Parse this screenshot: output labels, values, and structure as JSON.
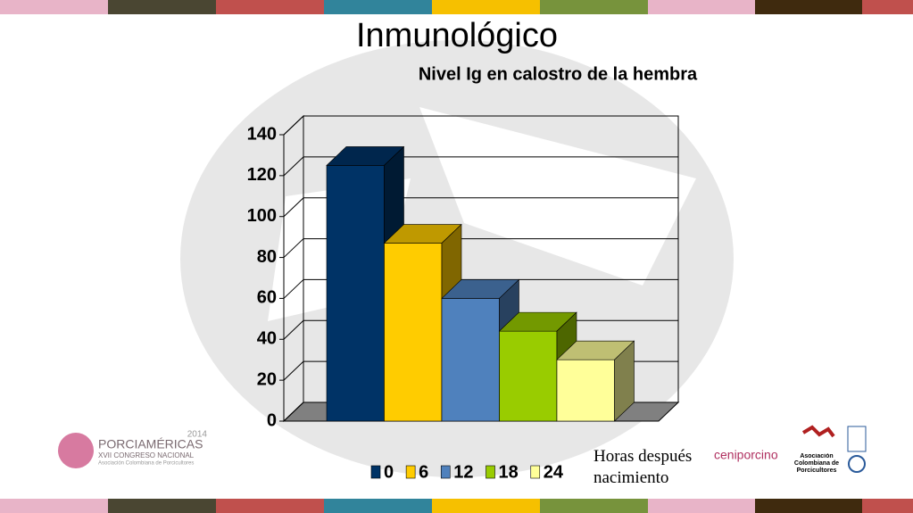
{
  "slide_title": "Inmunológico",
  "chart_data": {
    "type": "bar",
    "title": "Nivel Ig en calostro de la hembra",
    "x_label": "Horas después nacimiento",
    "categories": [
      null
    ],
    "series": [
      {
        "name": "0",
        "color": "#003366",
        "values": [
          125
        ]
      },
      {
        "name": "6",
        "color": "#ffcc00",
        "values": [
          87
        ]
      },
      {
        "name": "12",
        "color": "#4f81bd",
        "values": [
          60
        ]
      },
      {
        "name": "18",
        "color": "#99cc00",
        "values": [
          44
        ]
      },
      {
        "name": "24",
        "color": "#ffff99",
        "values": [
          30
        ]
      }
    ],
    "ylim": [
      0,
      140
    ],
    "yticks": [
      0,
      20,
      40,
      60,
      80,
      100,
      120,
      140
    ],
    "grid": true,
    "legend": "bottom"
  },
  "logos": {
    "porciamericas": {
      "name": "PORCIAMÉRICAS",
      "year": "2014",
      "event": "XVII CONGRESO NACIONAL",
      "org": "Asociación Colombiana de Porcicultores"
    },
    "ceniporcino": "ceniporcino",
    "asociacion": "Asociación Colombiana de Porcicultores"
  }
}
